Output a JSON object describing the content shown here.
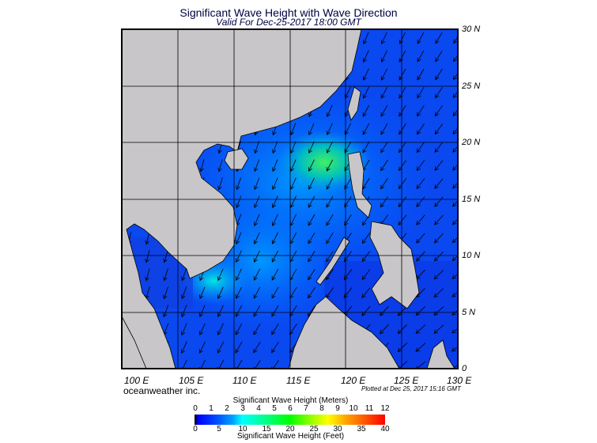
{
  "title": "Significant Wave Height with Wave Direction",
  "subtitle": "Valid For Dec-25-2017 18:00 GMT",
  "lat_labels": [
    "30 N",
    "25 N",
    "20 N",
    "15 N",
    "10 N",
    "5 N",
    "0"
  ],
  "lon_labels": [
    "100 E",
    "105 E",
    "110 E",
    "115 E",
    "120 E",
    "125 E",
    "130 E"
  ],
  "brand": "oceanweather inc.",
  "plotted": "Plotted at Dec 25, 2017 15:16 GMT",
  "colorbar": {
    "title_meters": "Significant Wave Height (Meters)",
    "title_feet": "Significant Wave Height (Feet)",
    "meters_ticks": [
      "0",
      "1",
      "2",
      "3",
      "4",
      "5",
      "6",
      "7",
      "8",
      "9",
      "10",
      "11",
      "12"
    ],
    "feet_ticks": [
      "0",
      "5",
      "10",
      "15",
      "20",
      "25",
      "30",
      "35",
      "40"
    ]
  },
  "colors": {
    "land": "#c8c6c8",
    "sea": "#0a48f0",
    "sea_light": "#0090ff",
    "high": "#30e860"
  },
  "map": {
    "lon_range": [
      100,
      130
    ],
    "lat_range": [
      0,
      30
    ],
    "wave_direction": "northeast to southwest"
  }
}
